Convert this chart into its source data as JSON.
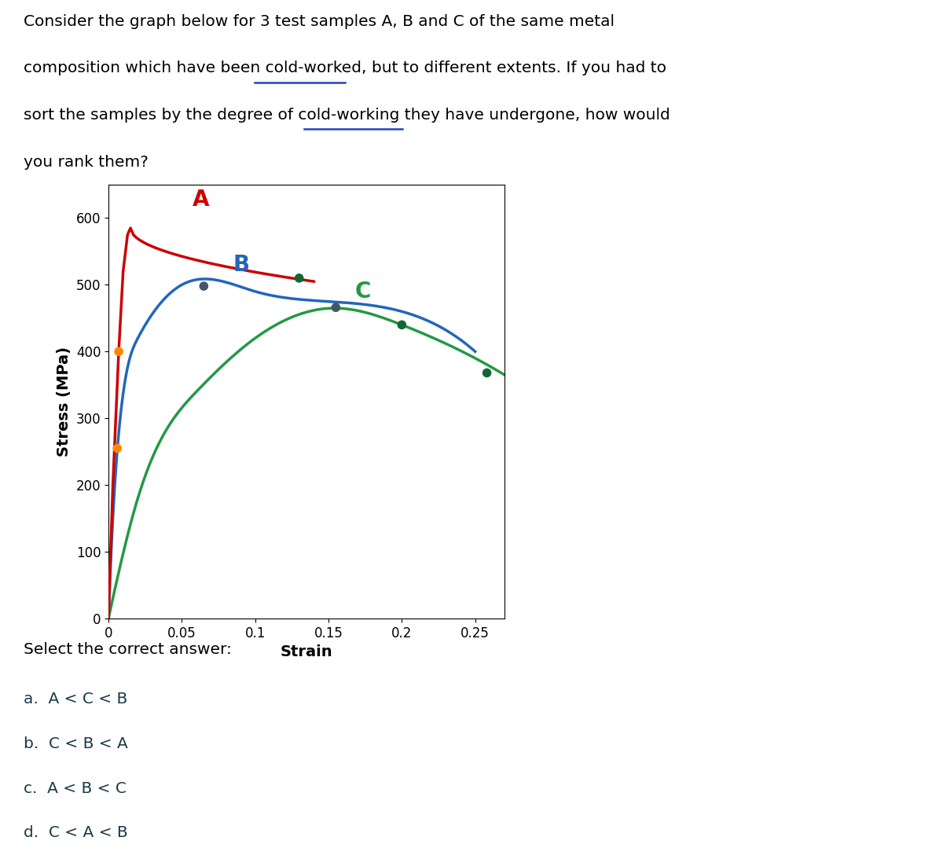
{
  "xlabel": "Strain",
  "ylabel": "Stress (MPa)",
  "ylim": [
    0,
    650
  ],
  "xlim": [
    0,
    0.27
  ],
  "yticks": [
    0,
    100,
    200,
    300,
    400,
    500,
    600
  ],
  "xticks": [
    0,
    0.05,
    0.1,
    0.15,
    0.2,
    0.25
  ],
  "curve_A_color": "#cc0000",
  "curve_B_color": "#2266bb",
  "curve_C_color": "#229944",
  "label_A_color": "#cc0000",
  "label_B_color": "#2266bb",
  "label_C_color": "#229944",
  "dot_orange": "#ff8800",
  "dot_dark": "#445566",
  "dot_green": "#116633",
  "select_text": "Select the correct answer:",
  "answers": [
    "a.  A < C < B",
    "b.  C < B < A",
    "c.  A < B < C",
    "d.  C < A < B"
  ],
  "background_light_blue": "#ddeef5",
  "question_lines": [
    "Consider the graph below for 3 test samples A, B and C of the same metal",
    "composition which have been cold-worked, but to different extents. If you had to",
    "sort the samples by the degree of cold-working they have undergone, how would",
    "you rank them?"
  ],
  "underline_1_word": "cold-worked",
  "underline_1_line": 1,
  "underline_2_word": "cold-working",
  "underline_2_line": 2
}
